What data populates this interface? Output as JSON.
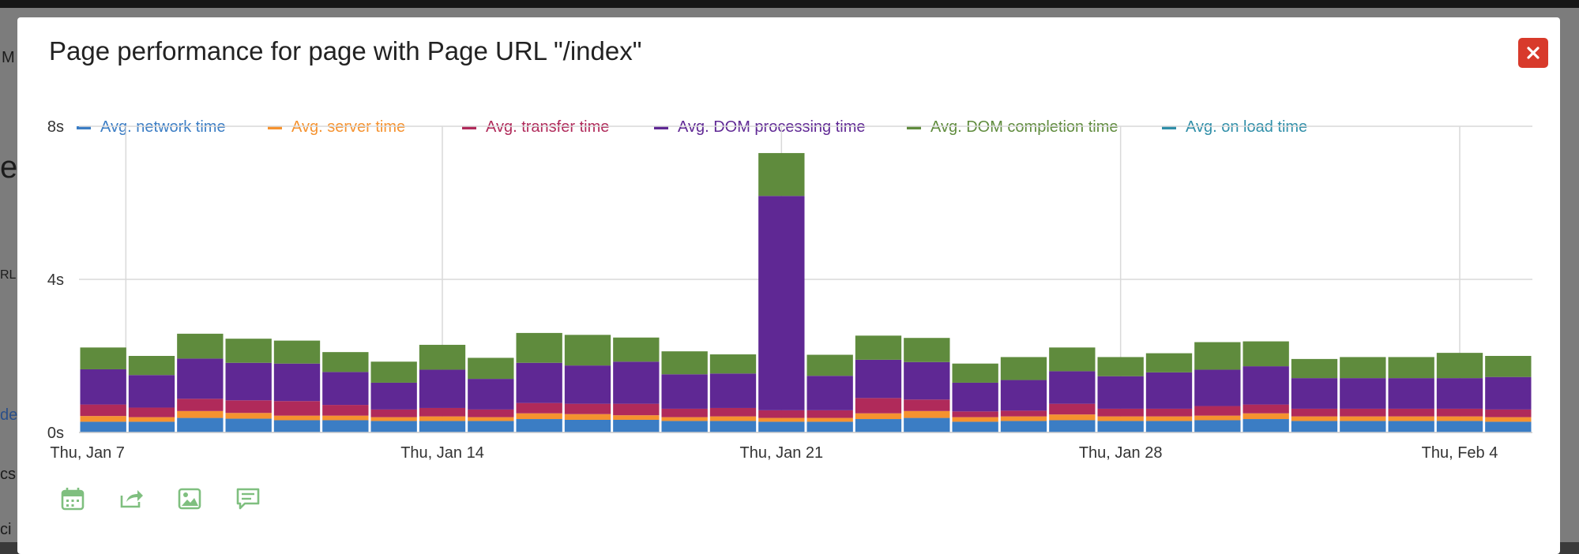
{
  "modal": {
    "title": "Page performance for page with Page URL \"/index\"",
    "close_icon": "close-icon"
  },
  "background": {
    "fragments": [
      "M",
      "e",
      "RL",
      "dex",
      "cs",
      "ci"
    ]
  },
  "legend": [
    {
      "label": "Avg. network time",
      "color": "#3b7dc4"
    },
    {
      "label": "Avg. server time",
      "color": "#f5922f"
    },
    {
      "label": "Avg. transfer time",
      "color": "#b02a5a"
    },
    {
      "label": "Avg. DOM processing time",
      "color": "#5f2894"
    },
    {
      "label": "Avg. DOM completion time",
      "color": "#5f8b3d"
    },
    {
      "label": "Avg. on load time",
      "color": "#2f8ea8"
    }
  ],
  "toolbar": [
    "calendar-icon",
    "share-icon",
    "image-icon",
    "comment-icon"
  ],
  "chart_data": {
    "type": "bar",
    "stacked": true,
    "x_ticks": [
      "Thu, Jan 7",
      "Thu, Jan 14",
      "Thu, Jan 21",
      "Thu, Jan 28",
      "Thu, Feb 4"
    ],
    "y_ticks": [
      "0s",
      "4s",
      "8s"
    ],
    "ylim": [
      0,
      8
    ],
    "categories": [
      "Jan 7",
      "Jan 8",
      "Jan 9",
      "Jan 10",
      "Jan 11",
      "Jan 12",
      "Jan 13",
      "Jan 14",
      "Jan 15",
      "Jan 16",
      "Jan 17",
      "Jan 18",
      "Jan 19",
      "Jan 20",
      "Jan 21",
      "Jan 22",
      "Jan 23",
      "Jan 24",
      "Jan 25",
      "Jan 26",
      "Jan 27",
      "Jan 28",
      "Jan 29",
      "Jan 30",
      "Jan 31",
      "Feb 1",
      "Feb 2",
      "Feb 3",
      "Feb 4",
      "Feb 5"
    ],
    "series": [
      {
        "name": "Avg. network time",
        "values": [
          0.28,
          0.28,
          0.38,
          0.36,
          0.32,
          0.32,
          0.3,
          0.3,
          0.3,
          0.35,
          0.33,
          0.33,
          0.3,
          0.3,
          0.28,
          0.28,
          0.35,
          0.38,
          0.28,
          0.3,
          0.32,
          0.3,
          0.3,
          0.32,
          0.35,
          0.3,
          0.3,
          0.3,
          0.3,
          0.28
        ]
      },
      {
        "name": "Avg. server time",
        "values": [
          0.15,
          0.12,
          0.18,
          0.15,
          0.12,
          0.12,
          0.1,
          0.12,
          0.1,
          0.15,
          0.15,
          0.12,
          0.1,
          0.12,
          0.1,
          0.1,
          0.15,
          0.18,
          0.12,
          0.12,
          0.15,
          0.12,
          0.12,
          0.12,
          0.15,
          0.12,
          0.12,
          0.12,
          0.12,
          0.12
        ]
      },
      {
        "name": "Avg. transfer time",
        "values": [
          0.3,
          0.25,
          0.32,
          0.33,
          0.38,
          0.28,
          0.2,
          0.22,
          0.2,
          0.27,
          0.27,
          0.3,
          0.22,
          0.22,
          0.2,
          0.2,
          0.4,
          0.3,
          0.15,
          0.15,
          0.28,
          0.2,
          0.2,
          0.25,
          0.23,
          0.2,
          0.2,
          0.2,
          0.2,
          0.2
        ]
      },
      {
        "name": "Avg. DOM processing time",
        "values": [
          0.92,
          0.85,
          1.05,
          0.98,
          0.98,
          0.86,
          0.7,
          1.0,
          0.8,
          1.05,
          1.0,
          1.1,
          0.9,
          0.9,
          5.6,
          0.9,
          1.0,
          0.98,
          0.75,
          0.8,
          0.85,
          0.85,
          0.95,
          0.95,
          1.0,
          0.8,
          0.8,
          0.8,
          0.8,
          0.85
        ]
      },
      {
        "name": "Avg. DOM completion time",
        "values": [
          0.57,
          0.5,
          0.65,
          0.63,
          0.6,
          0.52,
          0.55,
          0.65,
          0.55,
          0.78,
          0.8,
          0.63,
          0.6,
          0.5,
          1.12,
          0.55,
          0.63,
          0.63,
          0.5,
          0.6,
          0.62,
          0.5,
          0.5,
          0.72,
          0.65,
          0.5,
          0.55,
          0.55,
          0.66,
          0.55
        ]
      },
      {
        "name": "Avg. on load time",
        "values": [
          0,
          0,
          0,
          0,
          0,
          0,
          0,
          0,
          0,
          0,
          0,
          0,
          0,
          0,
          0,
          0,
          0,
          0,
          0,
          0,
          0,
          0,
          0,
          0,
          0,
          0,
          0,
          0,
          0,
          0
        ]
      }
    ],
    "grid": true
  }
}
